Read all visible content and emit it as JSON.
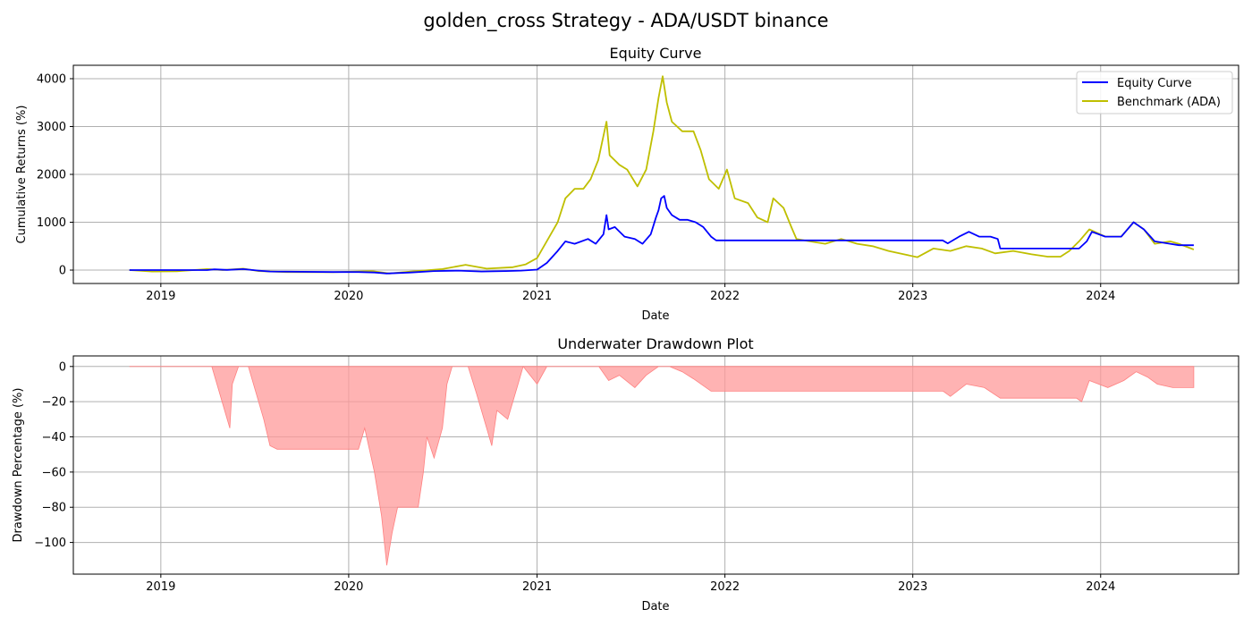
{
  "suptitle": "golden_cross Strategy - ADA/USDT binance",
  "chart_data": [
    {
      "type": "line",
      "title": "Equity Curve",
      "xlabel": "Date",
      "ylabel": "Cumulative Returns (%)",
      "xlim": [
        "2018-07-15",
        "2024-09-25"
      ],
      "ylim": [
        -280,
        4280
      ],
      "x_ticks": [
        "2019",
        "2020",
        "2021",
        "2022",
        "2023",
        "2024"
      ],
      "y_ticks": [
        0,
        1000,
        2000,
        3000,
        4000
      ],
      "grid": true,
      "legend_position": "upper-right",
      "series": [
        {
          "name": "Equity Curve",
          "color": "#0000ff",
          "points": [
            [
              "2018-11-01",
              0
            ],
            [
              "2019-04-01",
              0
            ],
            [
              "2019-04-15",
              15
            ],
            [
              "2019-05-10",
              5
            ],
            [
              "2019-06-10",
              20
            ],
            [
              "2019-07-10",
              -10
            ],
            [
              "2019-08-01",
              -30
            ],
            [
              "2019-12-01",
              -40
            ],
            [
              "2020-01-20",
              -40
            ],
            [
              "2020-02-20",
              -50
            ],
            [
              "2020-03-15",
              -70
            ],
            [
              "2020-05-01",
              -50
            ],
            [
              "2020-06-15",
              -20
            ],
            [
              "2020-08-01",
              -10
            ],
            [
              "2020-09-15",
              -30
            ],
            [
              "2020-11-01",
              -20
            ],
            [
              "2020-12-01",
              -10
            ],
            [
              "2021-01-01",
              10
            ],
            [
              "2021-01-20",
              150
            ],
            [
              "2021-02-10",
              400
            ],
            [
              "2021-02-25",
              600
            ],
            [
              "2021-03-15",
              550
            ],
            [
              "2021-04-10",
              650
            ],
            [
              "2021-04-25",
              550
            ],
            [
              "2021-05-10",
              750
            ],
            [
              "2021-05-16",
              1150
            ],
            [
              "2021-05-20",
              850
            ],
            [
              "2021-06-01",
              900
            ],
            [
              "2021-06-20",
              700
            ],
            [
              "2021-07-10",
              650
            ],
            [
              "2021-07-25",
              550
            ],
            [
              "2021-08-10",
              750
            ],
            [
              "2021-08-20",
              1100
            ],
            [
              "2021-08-25",
              1250
            ],
            [
              "2021-08-30",
              1500
            ],
            [
              "2021-09-05",
              1550
            ],
            [
              "2021-09-10",
              1300
            ],
            [
              "2021-09-20",
              1150
            ],
            [
              "2021-10-05",
              1050
            ],
            [
              "2021-10-20",
              1050
            ],
            [
              "2021-11-05",
              1000
            ],
            [
              "2021-11-20",
              900
            ],
            [
              "2021-12-05",
              700
            ],
            [
              "2021-12-15",
              620
            ],
            [
              "2023-02-28",
              620
            ],
            [
              "2023-03-10",
              560
            ],
            [
              "2023-04-01",
              700
            ],
            [
              "2023-04-20",
              800
            ],
            [
              "2023-05-10",
              700
            ],
            [
              "2023-06-01",
              700
            ],
            [
              "2023-06-15",
              650
            ],
            [
              "2023-06-20",
              450
            ],
            [
              "2023-11-01",
              450
            ],
            [
              "2023-11-20",
              450
            ],
            [
              "2023-12-05",
              600
            ],
            [
              "2023-12-15",
              800
            ],
            [
              "2024-01-10",
              700
            ],
            [
              "2024-02-10",
              700
            ],
            [
              "2024-03-05",
              1000
            ],
            [
              "2024-03-25",
              850
            ],
            [
              "2024-04-15",
              600
            ],
            [
              "2024-05-15",
              550
            ],
            [
              "2024-06-01",
              520
            ],
            [
              "2024-06-30",
              520
            ]
          ]
        },
        {
          "name": "Benchmark (ADA)",
          "color": "#bfbf00",
          "points": [
            [
              "2018-11-01",
              0
            ],
            [
              "2018-12-15",
              -30
            ],
            [
              "2019-02-01",
              -25
            ],
            [
              "2019-04-01",
              20
            ],
            [
              "2019-05-01",
              0
            ],
            [
              "2019-06-10",
              30
            ],
            [
              "2019-07-10",
              -20
            ],
            [
              "2019-09-01",
              -40
            ],
            [
              "2019-12-01",
              -45
            ],
            [
              "2020-02-15",
              -20
            ],
            [
              "2020-03-20",
              -70
            ],
            [
              "2020-05-01",
              -30
            ],
            [
              "2020-07-01",
              20
            ],
            [
              "2020-08-15",
              110
            ],
            [
              "2020-09-25",
              30
            ],
            [
              "2020-11-15",
              60
            ],
            [
              "2020-12-10",
              120
            ],
            [
              "2021-01-01",
              250
            ],
            [
              "2021-01-25",
              700
            ],
            [
              "2021-02-10",
              1000
            ],
            [
              "2021-02-25",
              1500
            ],
            [
              "2021-03-15",
              1700
            ],
            [
              "2021-04-01",
              1700
            ],
            [
              "2021-04-15",
              1900
            ],
            [
              "2021-04-30",
              2300
            ],
            [
              "2021-05-16",
              3100
            ],
            [
              "2021-05-22",
              2400
            ],
            [
              "2021-06-10",
              2200
            ],
            [
              "2021-06-25",
              2100
            ],
            [
              "2021-07-15",
              1750
            ],
            [
              "2021-08-01",
              2100
            ],
            [
              "2021-08-15",
              2900
            ],
            [
              "2021-08-25",
              3600
            ],
            [
              "2021-09-02",
              4050
            ],
            [
              "2021-09-10",
              3500
            ],
            [
              "2021-09-20",
              3100
            ],
            [
              "2021-10-10",
              2900
            ],
            [
              "2021-11-01",
              2900
            ],
            [
              "2021-11-15",
              2500
            ],
            [
              "2021-12-01",
              1900
            ],
            [
              "2021-12-20",
              1700
            ],
            [
              "2022-01-05",
              2100
            ],
            [
              "2022-01-20",
              1500
            ],
            [
              "2022-02-15",
              1400
            ],
            [
              "2022-03-05",
              1100
            ],
            [
              "2022-03-25",
              1000
            ],
            [
              "2022-04-05",
              1500
            ],
            [
              "2022-04-25",
              1300
            ],
            [
              "2022-05-10",
              900
            ],
            [
              "2022-05-20",
              650
            ],
            [
              "2022-06-15",
              600
            ],
            [
              "2022-07-15",
              550
            ],
            [
              "2022-08-15",
              650
            ],
            [
              "2022-09-15",
              550
            ],
            [
              "2022-10-15",
              500
            ],
            [
              "2022-11-15",
              400
            ],
            [
              "2022-12-15",
              330
            ],
            [
              "2023-01-10",
              270
            ],
            [
              "2023-02-10",
              450
            ],
            [
              "2023-03-15",
              400
            ],
            [
              "2023-04-15",
              500
            ],
            [
              "2023-05-15",
              450
            ],
            [
              "2023-06-10",
              350
            ],
            [
              "2023-07-15",
              400
            ],
            [
              "2023-08-20",
              330
            ],
            [
              "2023-09-20",
              280
            ],
            [
              "2023-10-15",
              280
            ],
            [
              "2023-11-01",
              400
            ],
            [
              "2023-11-20",
              600
            ],
            [
              "2023-12-10",
              850
            ],
            [
              "2024-01-10",
              700
            ],
            [
              "2024-02-10",
              700
            ],
            [
              "2024-03-05",
              1000
            ],
            [
              "2024-03-25",
              850
            ],
            [
              "2024-04-15",
              550
            ],
            [
              "2024-05-15",
              600
            ],
            [
              "2024-06-01",
              550
            ],
            [
              "2024-06-30",
              430
            ]
          ]
        }
      ]
    },
    {
      "type": "area",
      "title": "Underwater Drawdown Plot",
      "xlabel": "Date",
      "ylabel": "Drawdown Percentage (%)",
      "xlim": [
        "2018-07-15",
        "2024-09-25"
      ],
      "ylim": [
        -118,
        6
      ],
      "x_ticks": [
        "2019",
        "2020",
        "2021",
        "2022",
        "2023",
        "2024"
      ],
      "y_ticks": [
        0,
        -20,
        -40,
        -60,
        -80,
        -100
      ],
      "grid": true,
      "series": [
        {
          "color": "#ff9999",
          "points": [
            [
              "2018-11-01",
              0
            ],
            [
              "2019-04-10",
              0
            ],
            [
              "2019-04-20",
              -10
            ],
            [
              "2019-05-05",
              -25
            ],
            [
              "2019-05-15",
              -35
            ],
            [
              "2019-05-20",
              -10
            ],
            [
              "2019-06-01",
              0
            ],
            [
              "2019-06-20",
              0
            ],
            [
              "2019-07-05",
              -15
            ],
            [
              "2019-07-20",
              -30
            ],
            [
              "2019-08-01",
              -45
            ],
            [
              "2019-08-15",
              -47
            ],
            [
              "2019-09-01",
              -47
            ],
            [
              "2020-01-20",
              -47
            ],
            [
              "2020-02-01",
              -35
            ],
            [
              "2020-02-20",
              -60
            ],
            [
              "2020-03-05",
              -85
            ],
            [
              "2020-03-15",
              -113
            ],
            [
              "2020-03-25",
              -95
            ],
            [
              "2020-04-05",
              -80
            ],
            [
              "2020-05-15",
              -80
            ],
            [
              "2020-05-25",
              -60
            ],
            [
              "2020-06-01",
              -40
            ],
            [
              "2020-06-15",
              -52
            ],
            [
              "2020-07-01",
              -35
            ],
            [
              "2020-07-10",
              -10
            ],
            [
              "2020-07-20",
              0
            ],
            [
              "2020-08-20",
              0
            ],
            [
              "2020-09-05",
              -15
            ],
            [
              "2020-09-25",
              -35
            ],
            [
              "2020-10-05",
              -45
            ],
            [
              "2020-10-15",
              -25
            ],
            [
              "2020-11-05",
              -30
            ],
            [
              "2020-11-25",
              -10
            ],
            [
              "2020-12-05",
              0
            ],
            [
              "2021-01-01",
              -10
            ],
            [
              "2021-01-20",
              0
            ],
            [
              "2021-05-01",
              0
            ],
            [
              "2021-05-20",
              -8
            ],
            [
              "2021-06-10",
              -5
            ],
            [
              "2021-07-10",
              -12
            ],
            [
              "2021-08-01",
              -5
            ],
            [
              "2021-08-25",
              0
            ],
            [
              "2021-09-15",
              0
            ],
            [
              "2021-10-10",
              -3
            ],
            [
              "2021-11-01",
              -7
            ],
            [
              "2021-12-05",
              -14
            ],
            [
              "2023-03-01",
              -14
            ],
            [
              "2023-03-15",
              -17
            ],
            [
              "2023-04-15",
              -10
            ],
            [
              "2023-05-20",
              -12
            ],
            [
              "2023-06-20",
              -18
            ],
            [
              "2023-11-15",
              -18
            ],
            [
              "2023-11-25",
              -20
            ],
            [
              "2023-12-10",
              -8
            ],
            [
              "2024-01-15",
              -12
            ],
            [
              "2024-02-15",
              -8
            ],
            [
              "2024-03-10",
              -3
            ],
            [
              "2024-04-01",
              -6
            ],
            [
              "2024-04-20",
              -10
            ],
            [
              "2024-05-20",
              -12
            ],
            [
              "2024-06-30",
              -12
            ]
          ]
        }
      ]
    }
  ]
}
